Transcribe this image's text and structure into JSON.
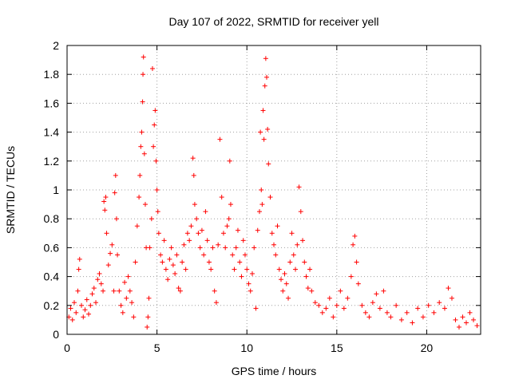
{
  "chart_data": {
    "type": "scatter",
    "title": "Day 107 of 2022, SRMTID for receiver yell",
    "xlabel": "GPS time / hours",
    "ylabel": "SRMTID / TECUs",
    "xlim": [
      0,
      23
    ],
    "ylim": [
      0,
      2
    ],
    "xticks": [
      0,
      5,
      10,
      15,
      20
    ],
    "yticks": [
      0,
      0.2,
      0.4,
      0.6,
      0.8,
      1,
      1.2,
      1.4,
      1.6,
      1.8,
      2
    ],
    "grid": true,
    "marker": "+",
    "marker_color": "#ff0000",
    "series": [
      {
        "name": "SRMTID",
        "points": [
          [
            0.1,
            0.12
          ],
          [
            0.2,
            0.18
          ],
          [
            0.3,
            0.1
          ],
          [
            0.4,
            0.22
          ],
          [
            0.5,
            0.15
          ],
          [
            0.6,
            0.3
          ],
          [
            0.65,
            0.45
          ],
          [
            0.7,
            0.52
          ],
          [
            0.8,
            0.2
          ],
          [
            0.9,
            0.12
          ],
          [
            1.0,
            0.17
          ],
          [
            1.1,
            0.24
          ],
          [
            1.2,
            0.14
          ],
          [
            1.3,
            0.2
          ],
          [
            1.4,
            0.28
          ],
          [
            1.5,
            0.32
          ],
          [
            1.6,
            0.22
          ],
          [
            1.7,
            0.38
          ],
          [
            1.8,
            0.42
          ],
          [
            1.9,
            0.35
          ],
          [
            2.0,
            0.3
          ],
          [
            2.05,
            0.92
          ],
          [
            2.1,
            0.86
          ],
          [
            2.15,
            0.95
          ],
          [
            2.2,
            0.7
          ],
          [
            2.3,
            0.48
          ],
          [
            2.4,
            0.56
          ],
          [
            2.5,
            0.62
          ],
          [
            2.6,
            0.3
          ],
          [
            2.65,
            0.98
          ],
          [
            2.7,
            1.1
          ],
          [
            2.75,
            0.8
          ],
          [
            2.8,
            0.55
          ],
          [
            2.9,
            0.3
          ],
          [
            3.0,
            0.2
          ],
          [
            3.1,
            0.15
          ],
          [
            3.2,
            0.36
          ],
          [
            3.3,
            0.25
          ],
          [
            3.4,
            0.4
          ],
          [
            3.5,
            0.3
          ],
          [
            3.6,
            0.22
          ],
          [
            3.7,
            0.12
          ],
          [
            3.8,
            0.5
          ],
          [
            3.9,
            0.75
          ],
          [
            4.0,
            0.95
          ],
          [
            4.05,
            1.1
          ],
          [
            4.1,
            1.3
          ],
          [
            4.15,
            1.4
          ],
          [
            4.2,
            1.61
          ],
          [
            4.22,
            1.8
          ],
          [
            4.25,
            1.92
          ],
          [
            4.3,
            1.25
          ],
          [
            4.35,
            0.9
          ],
          [
            4.4,
            0.6
          ],
          [
            4.45,
            0.05
          ],
          [
            4.5,
            0.12
          ],
          [
            4.55,
            0.25
          ],
          [
            4.6,
            0.6
          ],
          [
            4.7,
            0.8
          ],
          [
            4.75,
            1.84
          ],
          [
            4.8,
            1.3
          ],
          [
            4.85,
            1.45
          ],
          [
            4.9,
            1.55
          ],
          [
            4.95,
            1.2
          ],
          [
            5.0,
            1.0
          ],
          [
            5.05,
            0.85
          ],
          [
            5.1,
            0.7
          ],
          [
            5.2,
            0.55
          ],
          [
            5.3,
            0.5
          ],
          [
            5.4,
            0.65
          ],
          [
            5.5,
            0.45
          ],
          [
            5.6,
            0.38
          ],
          [
            5.7,
            0.52
          ],
          [
            5.8,
            0.6
          ],
          [
            5.9,
            0.48
          ],
          [
            6.0,
            0.42
          ],
          [
            6.1,
            0.55
          ],
          [
            6.2,
            0.32
          ],
          [
            6.3,
            0.3
          ],
          [
            6.4,
            0.5
          ],
          [
            6.5,
            0.62
          ],
          [
            6.6,
            0.45
          ],
          [
            6.7,
            0.7
          ],
          [
            6.8,
            0.65
          ],
          [
            6.9,
            0.75
          ],
          [
            7.0,
            1.22
          ],
          [
            7.05,
            1.1
          ],
          [
            7.1,
            0.9
          ],
          [
            7.2,
            0.8
          ],
          [
            7.3,
            0.7
          ],
          [
            7.4,
            0.6
          ],
          [
            7.5,
            0.72
          ],
          [
            7.6,
            0.55
          ],
          [
            7.7,
            0.85
          ],
          [
            7.8,
            0.65
          ],
          [
            7.9,
            0.5
          ],
          [
            8.0,
            0.45
          ],
          [
            8.1,
            0.6
          ],
          [
            8.2,
            0.3
          ],
          [
            8.3,
            0.22
          ],
          [
            8.4,
            0.62
          ],
          [
            8.5,
            1.35
          ],
          [
            8.6,
            0.95
          ],
          [
            8.7,
            0.7
          ],
          [
            8.8,
            0.6
          ],
          [
            8.9,
            0.75
          ],
          [
            9.0,
            0.8
          ],
          [
            9.05,
            1.2
          ],
          [
            9.1,
            0.9
          ],
          [
            9.2,
            0.55
          ],
          [
            9.3,
            0.45
          ],
          [
            9.4,
            0.6
          ],
          [
            9.5,
            0.72
          ],
          [
            9.6,
            0.5
          ],
          [
            9.7,
            0.4
          ],
          [
            9.8,
            0.65
          ],
          [
            9.9,
            0.55
          ],
          [
            10.0,
            0.45
          ],
          [
            10.1,
            0.35
          ],
          [
            10.2,
            0.3
          ],
          [
            10.3,
            0.42
          ],
          [
            10.4,
            0.6
          ],
          [
            10.5,
            0.18
          ],
          [
            10.6,
            0.72
          ],
          [
            10.7,
            0.85
          ],
          [
            10.75,
            1.4
          ],
          [
            10.8,
            1.0
          ],
          [
            10.85,
            0.9
          ],
          [
            10.9,
            1.55
          ],
          [
            10.95,
            1.35
          ],
          [
            11.0,
            1.72
          ],
          [
            11.05,
            1.91
          ],
          [
            11.1,
            1.78
          ],
          [
            11.15,
            1.42
          ],
          [
            11.2,
            1.18
          ],
          [
            11.3,
            0.95
          ],
          [
            11.4,
            0.7
          ],
          [
            11.5,
            0.62
          ],
          [
            11.6,
            0.55
          ],
          [
            11.7,
            0.75
          ],
          [
            11.8,
            0.45
          ],
          [
            11.9,
            0.38
          ],
          [
            12.0,
            0.3
          ],
          [
            12.1,
            0.42
          ],
          [
            12.2,
            0.35
          ],
          [
            12.3,
            0.25
          ],
          [
            12.4,
            0.5
          ],
          [
            12.5,
            0.7
          ],
          [
            12.6,
            0.55
          ],
          [
            12.7,
            0.45
          ],
          [
            12.8,
            0.62
          ],
          [
            12.9,
            1.02
          ],
          [
            13.0,
            0.85
          ],
          [
            13.1,
            0.65
          ],
          [
            13.2,
            0.5
          ],
          [
            13.3,
            0.4
          ],
          [
            13.4,
            0.32
          ],
          [
            13.5,
            0.45
          ],
          [
            13.6,
            0.3
          ],
          [
            13.8,
            0.22
          ],
          [
            14.0,
            0.2
          ],
          [
            14.2,
            0.15
          ],
          [
            14.4,
            0.18
          ],
          [
            14.6,
            0.25
          ],
          [
            14.8,
            0.12
          ],
          [
            15.0,
            0.2
          ],
          [
            15.2,
            0.3
          ],
          [
            15.4,
            0.18
          ],
          [
            15.6,
            0.25
          ],
          [
            15.8,
            0.4
          ],
          [
            15.9,
            0.62
          ],
          [
            16.0,
            0.68
          ],
          [
            16.1,
            0.5
          ],
          [
            16.2,
            0.35
          ],
          [
            16.4,
            0.2
          ],
          [
            16.6,
            0.15
          ],
          [
            16.8,
            0.12
          ],
          [
            17.0,
            0.22
          ],
          [
            17.2,
            0.28
          ],
          [
            17.4,
            0.18
          ],
          [
            17.6,
            0.3
          ],
          [
            17.8,
            0.15
          ],
          [
            18.0,
            0.12
          ],
          [
            18.3,
            0.2
          ],
          [
            18.6,
            0.1
          ],
          [
            18.9,
            0.15
          ],
          [
            19.2,
            0.08
          ],
          [
            19.5,
            0.18
          ],
          [
            19.8,
            0.12
          ],
          [
            20.1,
            0.2
          ],
          [
            20.4,
            0.15
          ],
          [
            20.7,
            0.22
          ],
          [
            21.0,
            0.18
          ],
          [
            21.2,
            0.32
          ],
          [
            21.4,
            0.25
          ],
          [
            21.6,
            0.1
          ],
          [
            21.8,
            0.05
          ],
          [
            22.0,
            0.12
          ],
          [
            22.2,
            0.08
          ],
          [
            22.4,
            0.15
          ],
          [
            22.6,
            0.1
          ],
          [
            22.8,
            0.06
          ]
        ]
      }
    ]
  }
}
